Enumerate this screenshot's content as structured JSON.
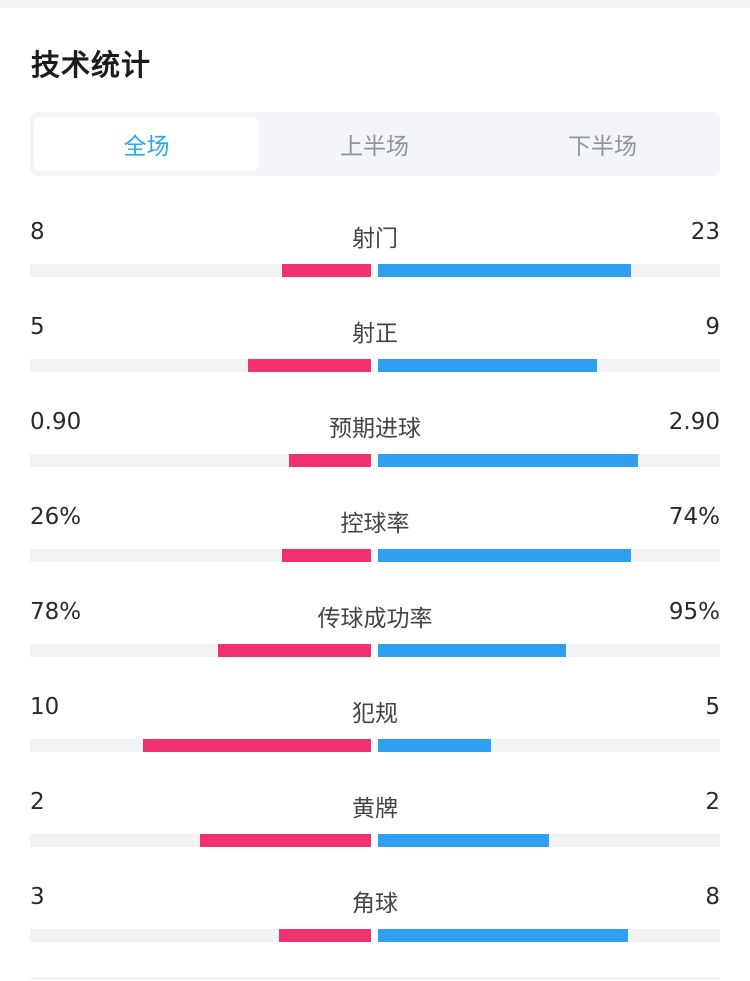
{
  "title": "技术统计",
  "tabs": [
    {
      "label": "全场",
      "active": true
    },
    {
      "label": "上半场",
      "active": false
    },
    {
      "label": "下半场",
      "active": false
    }
  ],
  "colors": {
    "home": "#f0306f",
    "away": "#2f9ff2",
    "active_tab": "#2ba6ef",
    "track": "#f2f3f5"
  },
  "stats": [
    {
      "label": "射门",
      "left": "8",
      "right": "23",
      "left_fill": 0.26,
      "right_fill": 0.74
    },
    {
      "label": "射正",
      "left": "5",
      "right": "9",
      "left_fill": 0.36,
      "right_fill": 0.64
    },
    {
      "label": "预期进球",
      "left": "0.90",
      "right": "2.90",
      "left_fill": 0.24,
      "right_fill": 0.76
    },
    {
      "label": "控球率",
      "left": "26%",
      "right": "74%",
      "left_fill": 0.26,
      "right_fill": 0.74
    },
    {
      "label": "传球成功率",
      "left": "78%",
      "right": "95%",
      "left_fill": 0.45,
      "right_fill": 0.55
    },
    {
      "label": "犯规",
      "left": "10",
      "right": "5",
      "left_fill": 0.67,
      "right_fill": 0.33
    },
    {
      "label": "黄牌",
      "left": "2",
      "right": "2",
      "left_fill": 0.5,
      "right_fill": 0.5
    },
    {
      "label": "角球",
      "left": "3",
      "right": "8",
      "left_fill": 0.27,
      "right_fill": 0.73
    }
  ]
}
